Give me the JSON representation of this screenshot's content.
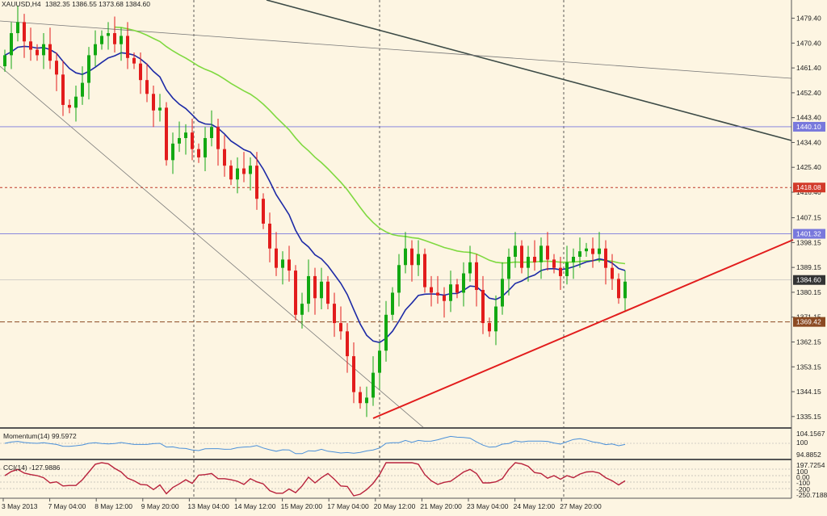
{
  "header": {
    "symbol": "XAUUSD,H4",
    "ohlc": "1382.35 1386.55 1373.68 1384.60"
  },
  "colors": {
    "background": "#fdf5e2",
    "bull": "#12a812",
    "bear": "#e21c1c",
    "ma_fast": "#1d2aa6",
    "ma_slow": "#7fd940",
    "support_line": "#e21c1c",
    "resistance_tag": "#7878dc",
    "dashed_level": "#c0392b",
    "price_tag": "#333333",
    "cci_line": "#b8223c",
    "momentum_line": "#4a90d9"
  },
  "price_axis": {
    "ticks": [
      "1479.40",
      "1470.40",
      "1461.40",
      "1452.40",
      "1443.40",
      "1434.40",
      "1425.40",
      "1416.40",
      "1407.15",
      "1398.15",
      "1389.15",
      "1380.15",
      "1371.15",
      "1362.15",
      "1353.15",
      "1344.15",
      "1335.15"
    ],
    "current_price": "1384.60",
    "levels": [
      {
        "label": "1440.10",
        "style": "blue"
      },
      {
        "label": "1418.08",
        "style": "red"
      },
      {
        "label": "1401.32",
        "style": "blue"
      },
      {
        "label": "1369.42",
        "style": "brown"
      }
    ]
  },
  "time_axis": {
    "labels": [
      "3 May 2013",
      "7 May 04:00",
      "8 May 12:00",
      "9 May 20:00",
      "13 May 04:00",
      "14 May 12:00",
      "15 May 20:00",
      "17 May 04:00",
      "20 May 12:00",
      "21 May 20:00",
      "23 May 04:00",
      "24 May 12:00",
      "27 May 20:00"
    ]
  },
  "momentum": {
    "label": "Momentum(14) 99.5972",
    "ticks": [
      "104.1567",
      "100",
      "94.8852"
    ]
  },
  "cci": {
    "label": "CCI(14) -127.9886",
    "ticks": [
      "197.7254",
      "100",
      "0.00",
      "-100",
      "-200",
      "-250.7188"
    ]
  },
  "chart_data": {
    "type": "candlestick",
    "title": "XAUUSD,H4",
    "ylim": [
      1331,
      1486
    ],
    "closes": [
      1466,
      1474,
      1478,
      1471,
      1468,
      1466,
      1470,
      1464,
      1459,
      1448,
      1447,
      1451,
      1456,
      1466,
      1470,
      1473,
      1474,
      1470,
      1473,
      1465,
      1463,
      1457,
      1452,
      1446,
      1447,
      1428,
      1434,
      1436,
      1438,
      1432,
      1429,
      1436,
      1440,
      1432,
      1426,
      1421,
      1425,
      1423,
      1426,
      1414,
      1405,
      1396,
      1389,
      1392,
      1388,
      1372,
      1376,
      1386,
      1378,
      1384,
      1376,
      1369,
      1366,
      1357,
      1344,
      1340,
      1342,
      1351,
      1359,
      1372,
      1380,
      1390,
      1396,
      1390,
      1394,
      1382,
      1380,
      1379,
      1377,
      1383,
      1380,
      1387,
      1391,
      1381,
      1369,
      1366,
      1375,
      1385,
      1393,
      1397,
      1389,
      1393,
      1391,
      1397,
      1392,
      1389,
      1386,
      1391,
      1393,
      1395,
      1396,
      1394,
      1396,
      1389,
      1385,
      1378,
      1384
    ]
  }
}
